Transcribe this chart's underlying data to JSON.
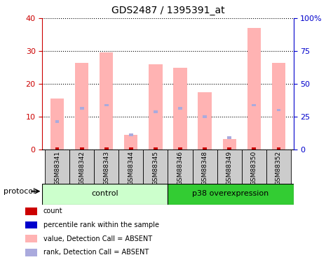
{
  "title": "GDS2487 / 1395391_at",
  "samples": [
    "GSM88341",
    "GSM88342",
    "GSM88343",
    "GSM88344",
    "GSM88345",
    "GSM88346",
    "GSM88348",
    "GSM88349",
    "GSM88350",
    "GSM88352"
  ],
  "pink_bar_values": [
    15.5,
    26.5,
    29.5,
    4.5,
    26.0,
    25.0,
    17.5,
    3.2,
    37.0,
    26.5
  ],
  "blue_bar_values": [
    8.5,
    12.5,
    13.5,
    4.5,
    11.5,
    12.5,
    10.0,
    3.5,
    13.5,
    12.0
  ],
  "red_bar_height": 0.5,
  "blue_bar_thickness": 0.8,
  "left_ylim": [
    0,
    40
  ],
  "right_ylim": [
    0,
    100
  ],
  "left_yticks": [
    0,
    10,
    20,
    30,
    40
  ],
  "right_yticks": [
    0,
    25,
    50,
    75,
    100
  ],
  "right_yticklabels": [
    "0",
    "25",
    "50",
    "75",
    "100%"
  ],
  "ctrl_color_light": "#ccffcc",
  "ctrl_color": "#99ee99",
  "p38_color": "#33cc33",
  "pink_color": "#ffb3b3",
  "blue_color": "#aaaadd",
  "red_color": "#cc0000",
  "dark_blue_color": "#0000cc",
  "sample_box_color": "#cccccc",
  "legend_items": [
    {
      "color": "#cc0000",
      "label": "count"
    },
    {
      "color": "#0000cc",
      "label": "percentile rank within the sample"
    },
    {
      "color": "#ffb3b3",
      "label": "value, Detection Call = ABSENT"
    },
    {
      "color": "#aaaadd",
      "label": "rank, Detection Call = ABSENT"
    }
  ],
  "background_color": "#ffffff",
  "bar_width": 0.55,
  "left_axis_color": "#cc0000",
  "right_axis_color": "#0000cc",
  "n_control": 5,
  "n_p38": 5
}
